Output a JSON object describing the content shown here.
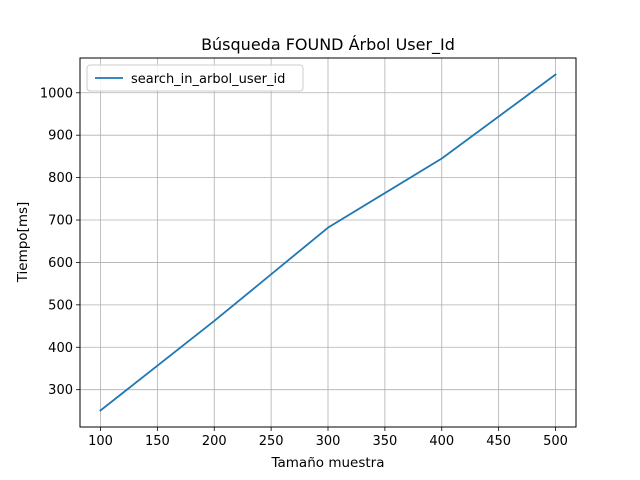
{
  "chart_data": {
    "type": "line",
    "title": "Búsqueda FOUND Árbol User_Id",
    "xlabel": "Tamaño muestra",
    "ylabel": "Tiempo[ms]",
    "xlim": [
      82,
      518
    ],
    "ylim": [
      212,
      1082
    ],
    "xticks": [
      100,
      150,
      200,
      250,
      300,
      350,
      400,
      450,
      500
    ],
    "yticks": [
      300,
      400,
      500,
      600,
      700,
      800,
      900,
      1000
    ],
    "grid": true,
    "legend_position": "top-left",
    "series": [
      {
        "name": "search_in_arbol_user_id",
        "color": "#1f77b4",
        "x": [
          100,
          200,
          300,
          400,
          500
        ],
        "y": [
          251,
          462,
          682,
          845,
          1043
        ]
      }
    ]
  }
}
